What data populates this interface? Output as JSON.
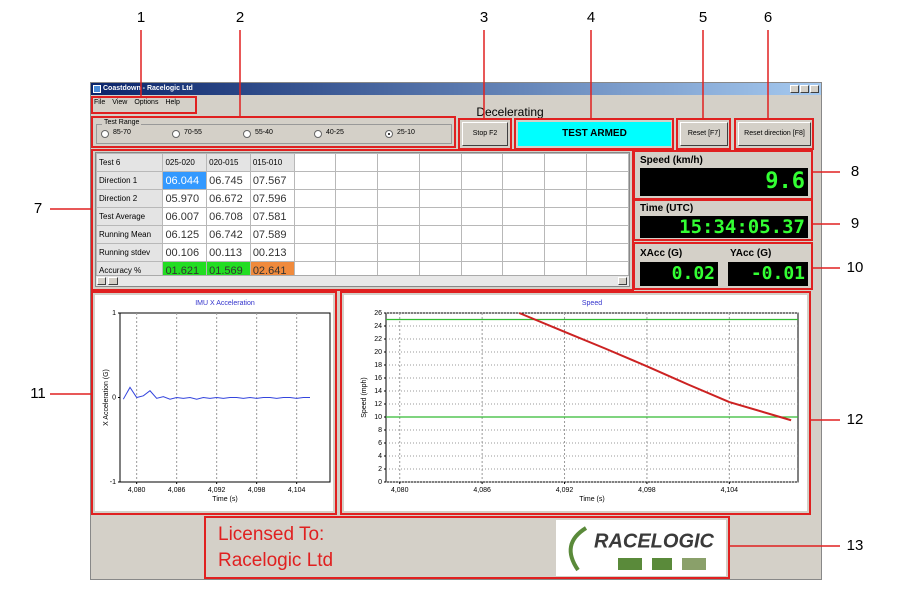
{
  "callouts": [
    "1",
    "2",
    "3",
    "4",
    "5",
    "6",
    "7",
    "8",
    "9",
    "10",
    "11",
    "12",
    "13"
  ],
  "window": {
    "title": "Coastdown - Racelogic Ltd",
    "menu": [
      "File",
      "View",
      "Options",
      "Help"
    ],
    "status": "Decelerating"
  },
  "test_range": {
    "label": "Test Range",
    "options": [
      "85-70",
      "70-55",
      "55-40",
      "40-25",
      "25-10"
    ],
    "selected": 4
  },
  "buttons": {
    "stop": "Stop F2",
    "armed": "TEST ARMED",
    "reset": "Reset [F7]",
    "reset_direction": "Reset direction [F8]"
  },
  "table": {
    "header": [
      "Test 6",
      "025-020",
      "020-015",
      "015-010"
    ],
    "rows": [
      [
        "Direction 1",
        "06.044",
        "06.745",
        "07.567"
      ],
      [
        "Direction 2",
        "05.970",
        "06.672",
        "07.596"
      ],
      [
        "Test Average",
        "06.007",
        "06.708",
        "07.581"
      ],
      [
        "Running Mean",
        "06.125",
        "06.742",
        "07.589"
      ],
      [
        "Running stdev",
        "00.106",
        "00.113",
        "00.213"
      ],
      [
        "Accuracy %",
        "01.621",
        "01.569",
        "02.641"
      ]
    ],
    "cell_colors": [
      [
        0,
        1,
        "#3399ff"
      ],
      [
        5,
        1,
        "#22dd22"
      ],
      [
        5,
        2,
        "#22dd22"
      ],
      [
        5,
        3,
        "#f08a3c"
      ]
    ]
  },
  "displays": {
    "speed": {
      "label": "Speed (km/h)",
      "value": "9.6"
    },
    "time": {
      "label": "Time (UTC)",
      "value": "15:34:05.37"
    },
    "xacc": {
      "label": "XAcc (G)",
      "value": "0.02"
    },
    "yacc": {
      "label": "YAcc (G)",
      "value": "-0.01"
    }
  },
  "chart_data": [
    {
      "type": "line",
      "title": "IMU X Acceleration",
      "x_label": "Time (s)",
      "y_label": "X Acceleration (G)",
      "x": [
        4078,
        4079,
        4080,
        4081,
        4082,
        4083,
        4084,
        4085,
        4086,
        4087,
        4088,
        4089,
        4090,
        4091,
        4092,
        4093,
        4094,
        4095,
        4096,
        4097,
        4098,
        4099,
        4100,
        4101,
        4102,
        4103,
        4104,
        4105,
        4106
      ],
      "values": [
        -0.02,
        0.12,
        0.0,
        0.02,
        0.08,
        -0.01,
        0.01,
        -0.02,
        0.0,
        -0.01,
        0.0,
        -0.02,
        0.0,
        -0.01,
        0.0,
        -0.01,
        0.0,
        0.0,
        -0.01,
        0.0,
        -0.01,
        0.0,
        0.0,
        -0.01,
        0.0,
        0.0,
        -0.01,
        0.0,
        0.0
      ],
      "color": "#3344dd",
      "xlim": [
        4077.5,
        4109
      ],
      "ylim": [
        -1,
        1
      ],
      "xticks": [
        {
          "value": 4080,
          "label": "4,080"
        },
        {
          "value": 4086,
          "label": "4,086"
        },
        {
          "value": 4092,
          "label": "4,092"
        },
        {
          "value": 4098,
          "label": "4,098"
        },
        {
          "value": 4104,
          "label": "4,104"
        }
      ],
      "yticks": [
        -1,
        0,
        1
      ],
      "grid": "x"
    },
    {
      "type": "line",
      "title": "Speed",
      "x_label": "Time (s)",
      "y_label": "Speed (mph)",
      "x": [
        4088.7,
        4092,
        4095,
        4098,
        4101,
        4104,
        4108.5
      ],
      "values": [
        26,
        23.1,
        20.5,
        17.8,
        15.0,
        12.3,
        9.5
      ],
      "color": "#cc2222",
      "reference_lines": {
        "values": [
          25,
          10
        ],
        "color": "#33bb33"
      },
      "xlim": [
        4079,
        4109
      ],
      "ylim": [
        0,
        26
      ],
      "xticks": [
        {
          "value": 4080,
          "label": "4,080"
        },
        {
          "value": 4086,
          "label": "4,086"
        },
        {
          "value": 4092,
          "label": "4,092"
        },
        {
          "value": 4098,
          "label": "4,098"
        },
        {
          "value": 4104,
          "label": "4,104"
        }
      ],
      "yticks": [
        0,
        2,
        4,
        6,
        8,
        10,
        12,
        14,
        16,
        18,
        20,
        22,
        24,
        26
      ],
      "grid": "both"
    }
  ],
  "license": {
    "label": "Licensed To:",
    "name": "Racelogic Ltd",
    "logo": "RACELOGIC"
  }
}
